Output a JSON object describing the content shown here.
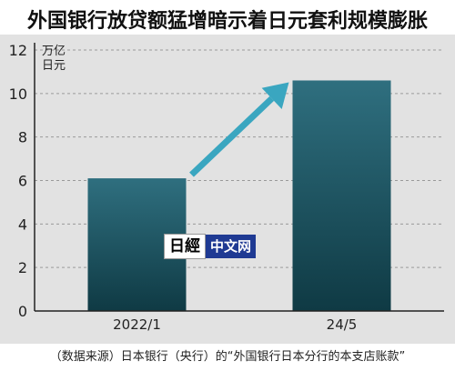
{
  "chart_data": {
    "type": "bar",
    "title": "外国银行放贷额猛增暗示着日元套利规模膨胀",
    "ylabel": "万亿\n日元",
    "categories": [
      "2022/1",
      "24/5"
    ],
    "values": [
      6.1,
      10.6
    ],
    "ylim": [
      0,
      12
    ],
    "yticks": [
      0,
      2,
      4,
      6,
      8,
      10,
      12
    ],
    "grid": true,
    "source": "（数据来源）日本银行（央行）的“外国银行日本分行的本支店账款”"
  },
  "watermark": {
    "logo": "日經",
    "text": "中文网"
  },
  "colors": {
    "bar_top": "#2f6f7f",
    "bar_bottom": "#0f3a44",
    "arrow": "#3aa6c0",
    "plot_bg": "#e2e2e2"
  }
}
